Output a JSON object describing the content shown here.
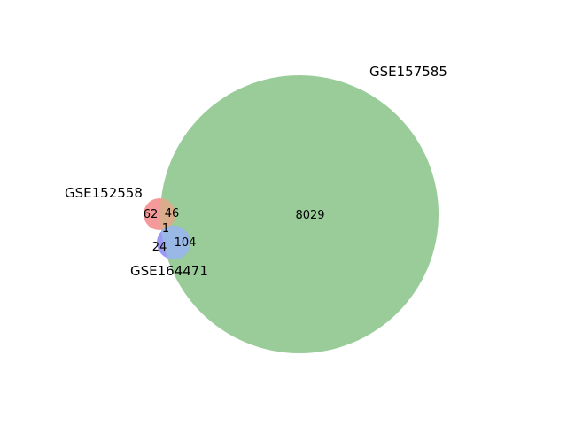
{
  "diagram": {
    "type": "venn3",
    "sets": [
      {
        "id": "A",
        "name": "GSE152558",
        "color": "#ff8080"
      },
      {
        "id": "B",
        "name": "GSE157585",
        "color": "#80bf80"
      },
      {
        "id": "C",
        "name": "GSE164471",
        "color": "#8080ff"
      }
    ],
    "regions": {
      "A_only": "62",
      "A_and_B": "46",
      "A_B_C": "1",
      "C_only": "24",
      "B_and_C": "104",
      "B_only": "8029"
    },
    "region_colors": {
      "A_only": "#f59a9a",
      "B_only": "#9acc9a",
      "A_and_B": "#d9ad8c",
      "C_only": "#9a9af5",
      "B_and_C": "#9ab8e6"
    }
  }
}
